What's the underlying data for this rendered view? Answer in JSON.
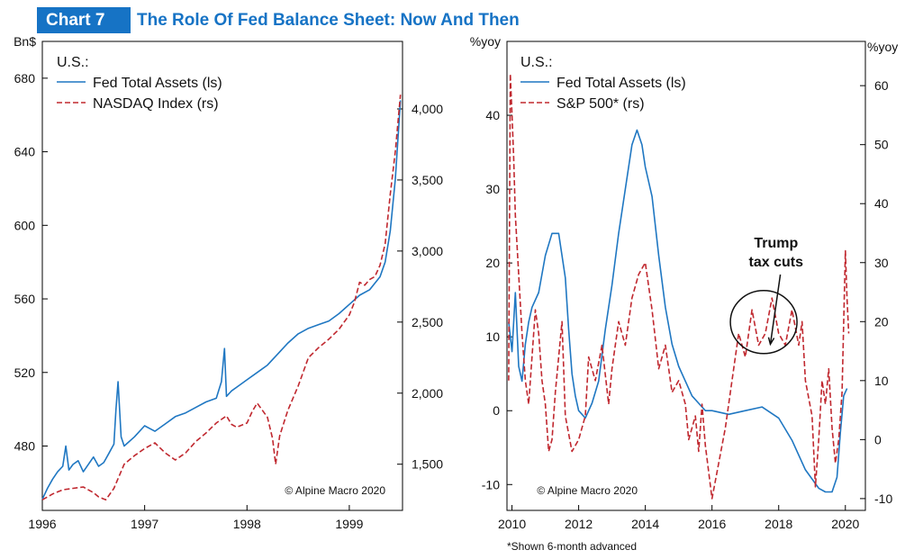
{
  "header": {
    "badge": "Chart 7",
    "title": "The Role Of Fed Balance Sheet: Now And Then"
  },
  "colors": {
    "blue": "#1f77c2",
    "red": "#c0282f",
    "accent": "#1673c5"
  },
  "chart_data": [
    {
      "type": "line",
      "panel": "left",
      "region_label": "U.S.:",
      "left_unit": "Bn$",
      "credit": "© Alpine Macro 2020",
      "xlim": [
        1996,
        1999.52
      ],
      "ylim_left": [
        445,
        700
      ],
      "ylim_right": [
        1175,
        4475
      ],
      "x_ticks": [
        1996,
        1997,
        1998,
        1999
      ],
      "x_tick_labels": [
        "1996",
        "1997",
        "1998",
        "1999"
      ],
      "y_left_ticks": [
        480,
        520,
        560,
        600,
        640,
        680
      ],
      "y_left_tick_labels": [
        "480",
        "520",
        "560",
        "600",
        "640",
        "680"
      ],
      "y_right_ticks": [
        1500,
        2000,
        2500,
        3000,
        3500,
        4000
      ],
      "y_right_tick_labels": [
        "1,500",
        "2,000",
        "2,500",
        "3,000",
        "3,500",
        "4,000"
      ],
      "series": [
        {
          "name": "Fed Total Assets (ls)",
          "axis": "left",
          "style": "solid",
          "x": [
            1996.0,
            1996.05,
            1996.1,
            1996.15,
            1996.2,
            1996.23,
            1996.26,
            1996.3,
            1996.35,
            1996.4,
            1996.45,
            1996.5,
            1996.55,
            1996.6,
            1996.65,
            1996.7,
            1996.72,
            1996.74,
            1996.77,
            1996.8,
            1996.9,
            1997.0,
            1997.1,
            1997.2,
            1997.3,
            1997.4,
            1997.5,
            1997.6,
            1997.7,
            1997.75,
            1997.78,
            1997.8,
            1997.85,
            1997.9,
            1998.0,
            1998.1,
            1998.2,
            1998.3,
            1998.4,
            1998.5,
            1998.6,
            1998.7,
            1998.8,
            1998.9,
            1999.0,
            1999.1,
            1999.2,
            1999.3,
            1999.35,
            1999.4,
            1999.45,
            1999.5
          ],
          "values": [
            451,
            457,
            462,
            466,
            469,
            480,
            467,
            470,
            472,
            466,
            470,
            474,
            469,
            471,
            476,
            481,
            500,
            515,
            485,
            480,
            485,
            491,
            488,
            492,
            496,
            498,
            501,
            504,
            506,
            515,
            533,
            507,
            510,
            512,
            516,
            520,
            524,
            530,
            536,
            541,
            544,
            546,
            548,
            552,
            557,
            562,
            565,
            572,
            580,
            597,
            625,
            668
          ]
        },
        {
          "name": "NASDAQ Index (rs)",
          "axis": "right",
          "style": "dashed",
          "x": [
            1996.0,
            1996.1,
            1996.2,
            1996.3,
            1996.4,
            1996.5,
            1996.55,
            1996.62,
            1996.7,
            1996.8,
            1996.9,
            1997.0,
            1997.1,
            1997.2,
            1997.3,
            1997.4,
            1997.5,
            1997.6,
            1997.7,
            1997.8,
            1997.85,
            1997.9,
            1998.0,
            1998.05,
            1998.1,
            1998.2,
            1998.25,
            1998.28,
            1998.32,
            1998.4,
            1998.5,
            1998.6,
            1998.7,
            1998.8,
            1998.9,
            1999.0,
            1999.05,
            1999.1,
            1999.15,
            1999.2,
            1999.25,
            1999.3,
            1999.35,
            1999.4,
            1999.45,
            1999.5
          ],
          "values": [
            1250,
            1290,
            1320,
            1330,
            1340,
            1300,
            1270,
            1250,
            1330,
            1500,
            1560,
            1610,
            1650,
            1580,
            1530,
            1580,
            1660,
            1720,
            1790,
            1840,
            1780,
            1760,
            1790,
            1870,
            1930,
            1830,
            1680,
            1500,
            1700,
            1880,
            2050,
            2250,
            2320,
            2380,
            2450,
            2550,
            2640,
            2780,
            2760,
            2800,
            2820,
            2900,
            3050,
            3400,
            3700,
            4100
          ]
        }
      ]
    },
    {
      "type": "line",
      "panel": "right",
      "region_label": "U.S.:",
      "left_unit": "%yoy",
      "right_unit": "%yoy",
      "credit": "© Alpine Macro 2020",
      "footnote": "*Shown 6-month advanced",
      "annotation": "Trump tax cuts",
      "annotation_lines": [
        "Trump",
        "tax cuts"
      ],
      "xlim": [
        2009.85,
        2020.6
      ],
      "ylim_left": [
        -13.5,
        50
      ],
      "ylim_right": [
        -12,
        67.5
      ],
      "x_ticks": [
        2010,
        2012,
        2014,
        2016,
        2018,
        2020
      ],
      "x_tick_labels": [
        "2010",
        "2012",
        "2014",
        "2016",
        "2018",
        "2020"
      ],
      "y_left_ticks": [
        -10,
        0,
        10,
        20,
        30,
        40
      ],
      "y_left_tick_labels": [
        "-10",
        "0",
        "10",
        "20",
        "30",
        "40"
      ],
      "y_right_ticks": [
        -10,
        0,
        10,
        20,
        30,
        40,
        50,
        60
      ],
      "y_right_tick_labels": [
        "-10",
        "0",
        "10",
        "20",
        "30",
        "40",
        "50",
        "60"
      ],
      "series": [
        {
          "name": "Fed Total Assets (ls)",
          "axis": "left",
          "style": "solid",
          "x": [
            2009.9,
            2010.0,
            2010.1,
            2010.2,
            2010.3,
            2010.4,
            2010.5,
            2010.6,
            2010.8,
            2011.0,
            2011.2,
            2011.4,
            2011.5,
            2011.6,
            2011.7,
            2011.8,
            2011.9,
            2012.0,
            2012.2,
            2012.4,
            2012.6,
            2012.8,
            2013.0,
            2013.2,
            2013.4,
            2013.6,
            2013.75,
            2013.9,
            2014.0,
            2014.2,
            2014.4,
            2014.6,
            2014.8,
            2015.0,
            2015.2,
            2015.4,
            2015.6,
            2015.8,
            2016.0,
            2016.5,
            2017.0,
            2017.5,
            2018.0,
            2018.4,
            2018.8,
            2019.2,
            2019.4,
            2019.6,
            2019.75,
            2019.85,
            2019.95,
            2020.05
          ],
          "values": [
            12,
            8,
            16,
            6,
            4,
            9,
            12,
            14,
            16,
            21,
            24,
            24,
            21,
            18,
            11,
            5,
            2,
            0,
            -1,
            1,
            4,
            11,
            17,
            24,
            30,
            36,
            38,
            36,
            33,
            29,
            21,
            14,
            9,
            6,
            4,
            2,
            1,
            0,
            0,
            -0.5,
            0,
            0.5,
            -1,
            -4,
            -8,
            -10.5,
            -11,
            -11,
            -9,
            -3,
            2,
            3
          ]
        },
        {
          "name": "S&P 500* (rs)",
          "axis": "right",
          "style": "dashed",
          "x": [
            2009.9,
            2009.95,
            2010.0,
            2010.05,
            2010.1,
            2010.2,
            2010.3,
            2010.4,
            2010.5,
            2010.6,
            2010.7,
            2010.8,
            2010.9,
            2011.0,
            2011.1,
            2011.2,
            2011.3,
            2011.5,
            2011.6,
            2011.8,
            2012.0,
            2012.2,
            2012.3,
            2012.5,
            2012.7,
            2012.9,
            2013.0,
            2013.2,
            2013.4,
            2013.6,
            2013.8,
            2014.0,
            2014.2,
            2014.4,
            2014.6,
            2014.8,
            2015.0,
            2015.2,
            2015.3,
            2015.5,
            2015.6,
            2015.7,
            2015.8,
            2016.0,
            2016.2,
            2016.4,
            2016.6,
            2016.8,
            2017.0,
            2017.2,
            2017.4,
            2017.6,
            2017.8,
            2018.0,
            2018.2,
            2018.4,
            2018.6,
            2018.7,
            2018.8,
            2019.0,
            2019.1,
            2019.2,
            2019.3,
            2019.4,
            2019.5,
            2019.6,
            2019.7,
            2019.8,
            2019.9,
            2020.0,
            2020.05,
            2020.1
          ],
          "values": [
            10,
            62,
            55,
            48,
            38,
            28,
            18,
            10,
            6,
            14,
            22,
            18,
            10,
            6,
            -2,
            0,
            8,
            20,
            4,
            -2,
            0,
            4,
            14,
            10,
            16,
            6,
            12,
            20,
            16,
            24,
            28,
            30,
            22,
            12,
            16,
            8,
            10,
            6,
            0,
            4,
            -2,
            6,
            -1,
            -10,
            -4,
            2,
            10,
            18,
            14,
            22,
            16,
            18,
            24,
            18,
            16,
            22,
            16,
            20,
            10,
            4,
            -8,
            0,
            10,
            6,
            12,
            2,
            -4,
            0,
            8,
            32,
            24,
            18
          ]
        }
      ]
    }
  ]
}
